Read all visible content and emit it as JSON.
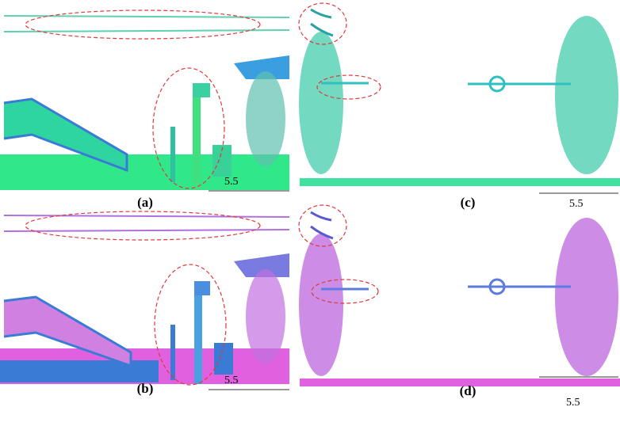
{
  "panels": [
    {
      "label": "(a)",
      "scale": "5.5"
    },
    {
      "label": "(b)",
      "scale": "5.5"
    },
    {
      "label": "(c)",
      "scale": "5.5"
    },
    {
      "label": "(d)",
      "scale": "5.5"
    }
  ]
}
